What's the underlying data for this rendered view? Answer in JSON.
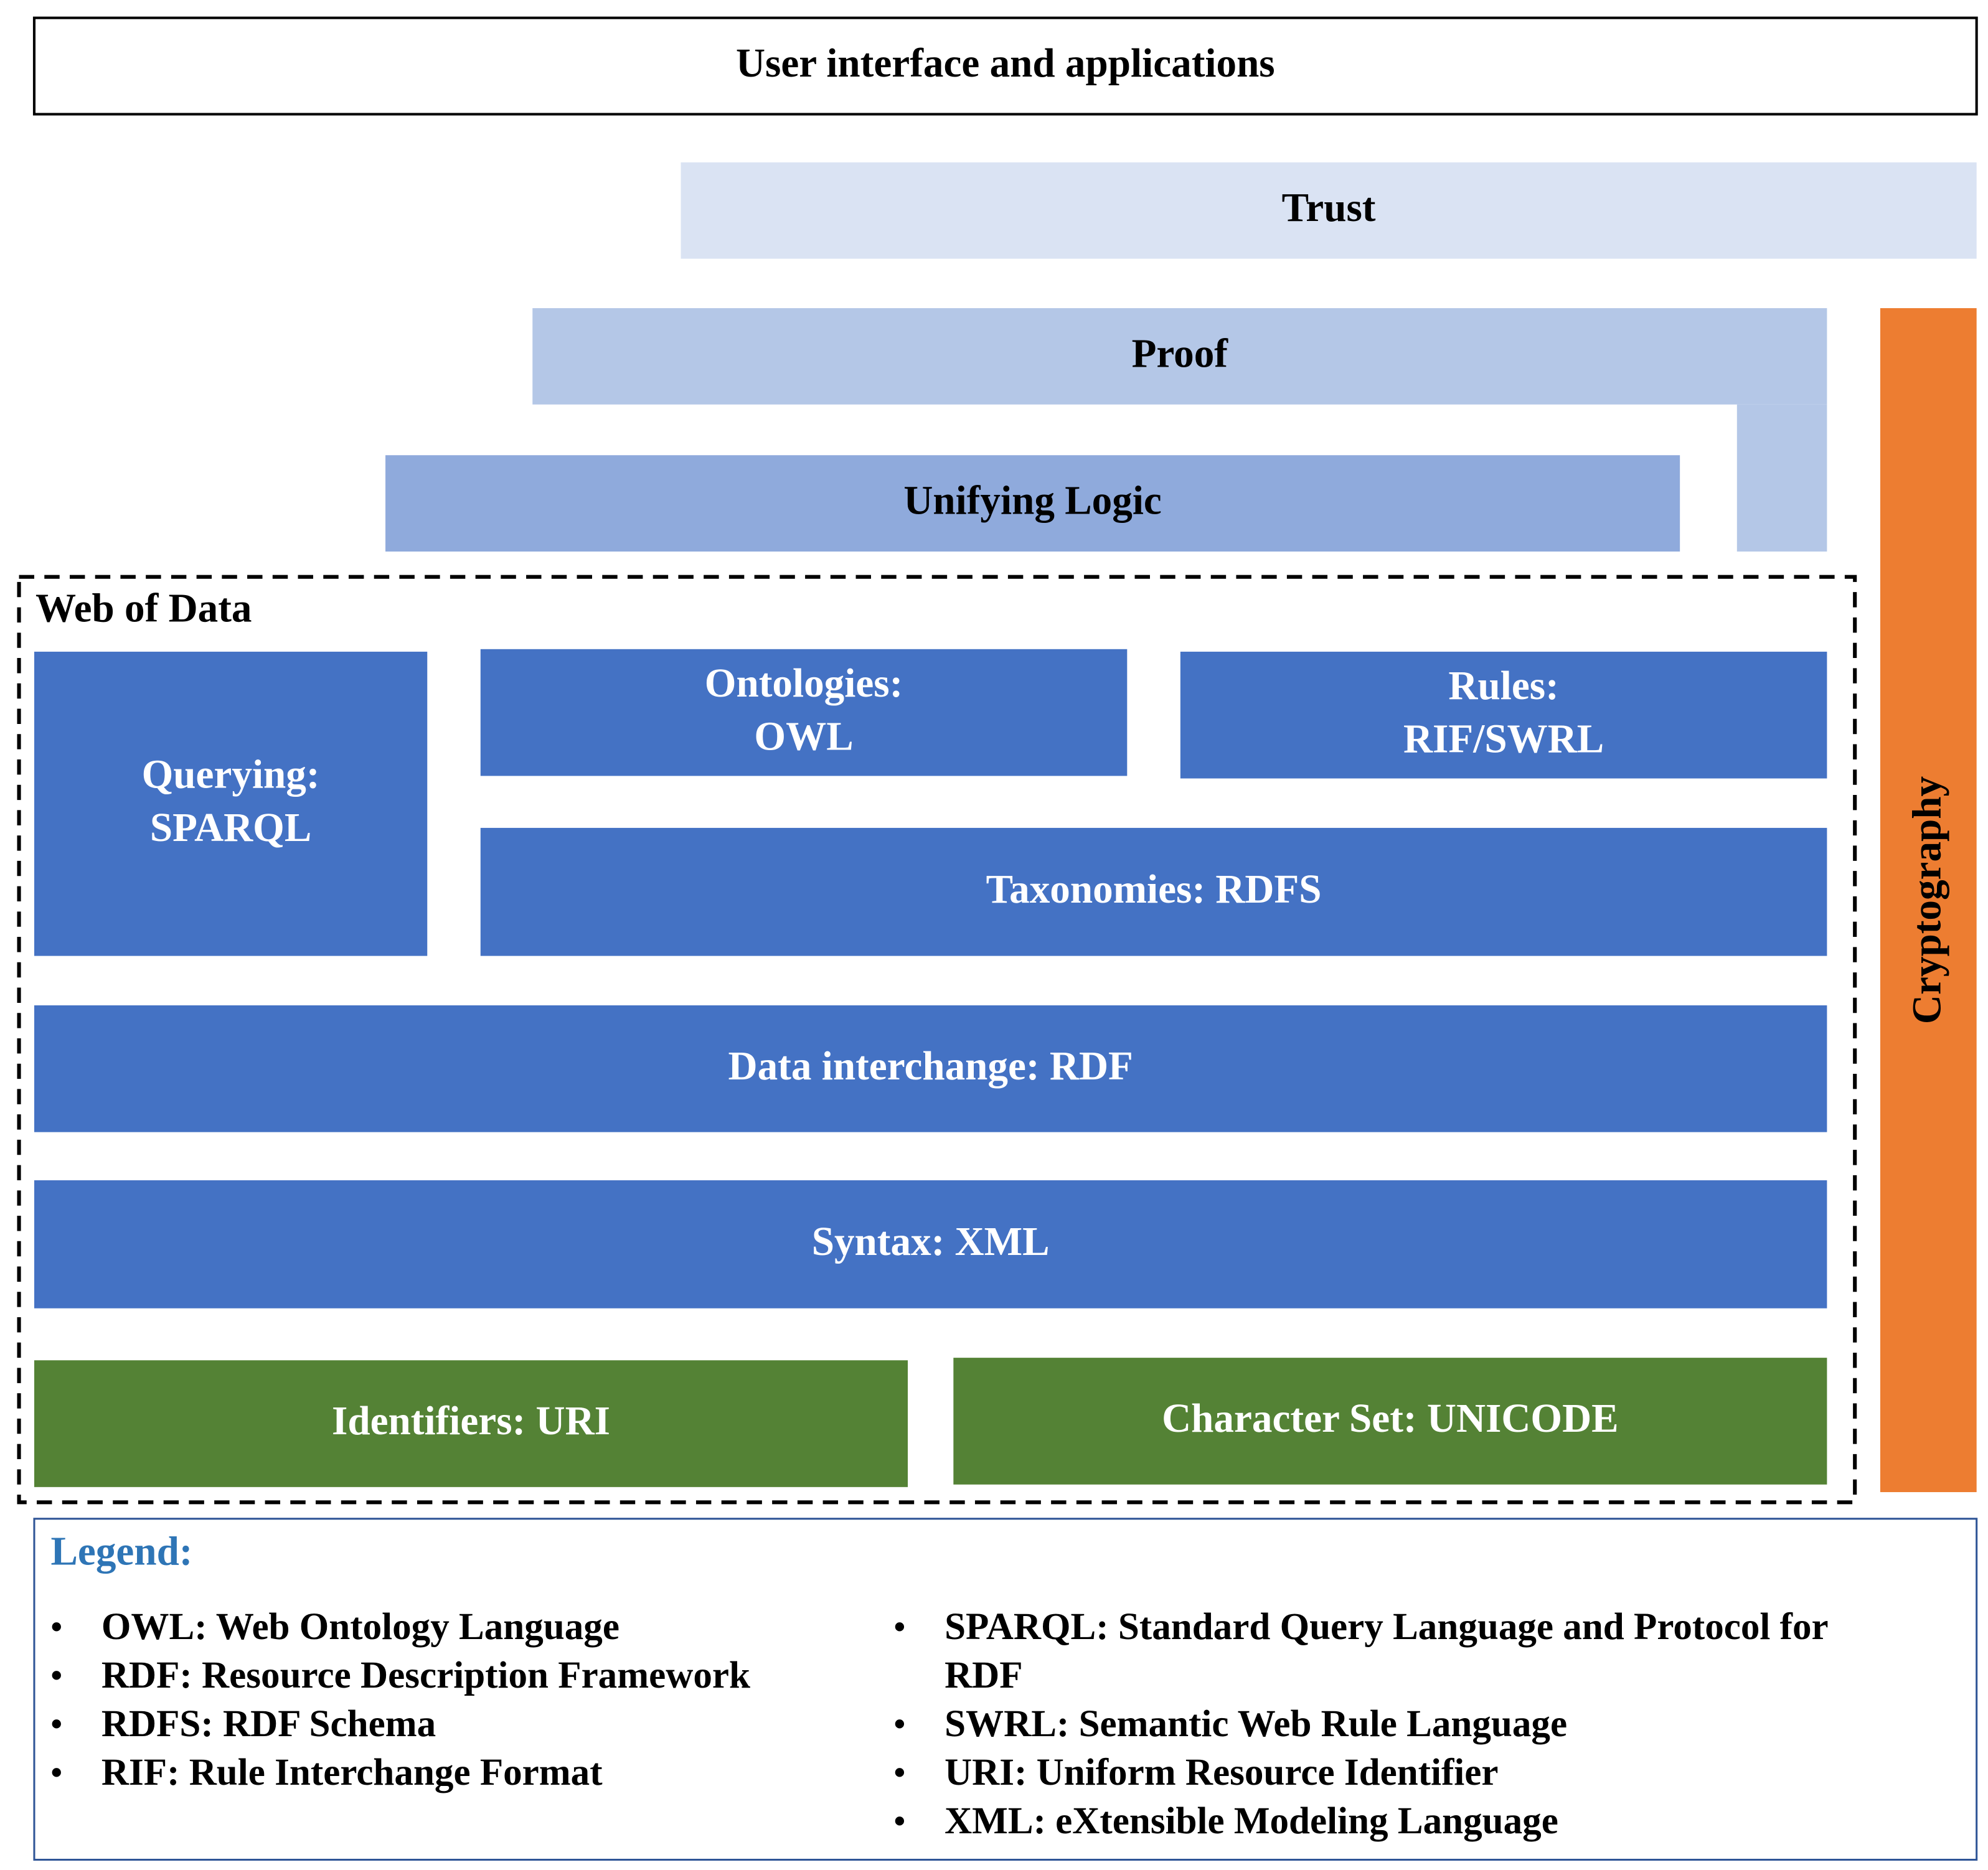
{
  "nodes": [
    {
      "lines": [
        "User interface and applications"
      ]
    },
    {
      "lines": [
        "Trust"
      ]
    },
    {
      "lines": [
        "Proof"
      ]
    },
    {
      "lines": [
        "Unifying Logic"
      ]
    },
    {
      "lines": [
        "Querying:",
        "SPARQL"
      ]
    },
    {
      "lines": [
        "Ontologies:",
        "OWL"
      ]
    },
    {
      "lines": [
        "Rules:",
        "RIF/SWRL"
      ]
    },
    {
      "lines": [
        "Taxonomies: RDFS"
      ]
    },
    {
      "lines": [
        "Data interchange: RDF"
      ]
    },
    {
      "lines": [
        "Syntax: XML"
      ]
    },
    {
      "lines": [
        "Identifiers: URI"
      ]
    },
    {
      "lines": [
        "Character Set: UNICODE"
      ]
    },
    {
      "lines": [
        "Cryptography"
      ]
    }
  ],
  "group": {
    "label": "Web of Data"
  },
  "legend": {
    "title": "Legend:",
    "left": [
      [
        "OWL: Web Ontology Language"
      ],
      [
        "RDF: Resource Description Framework"
      ],
      [
        "RDFS: RDF Schema"
      ],
      [
        "RIF: Rule Interchange Format"
      ]
    ],
    "right": [
      [
        "SPARQL: Standard Query Language and Protocol for",
        "RDF"
      ],
      [
        "SWRL: Semantic Web Rule Language"
      ],
      [
        "URI: Uniform Resource Identifier"
      ],
      [
        "XML: eXtensible Modeling Language"
      ]
    ]
  }
}
